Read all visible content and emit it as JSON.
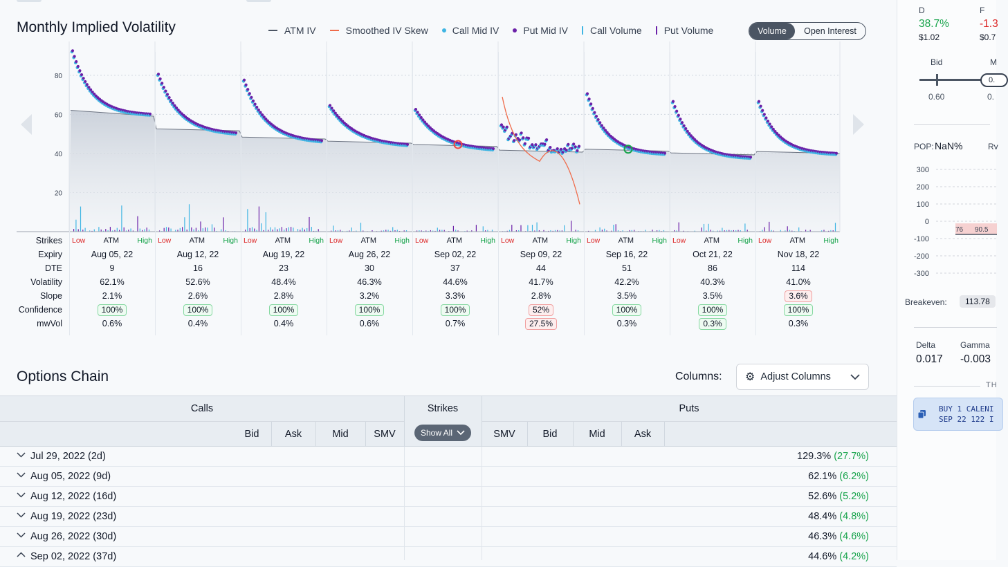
{
  "chart": {
    "title": "Monthly Implied Volatility",
    "legend": [
      {
        "label": "ATM IV",
        "kind": "line",
        "color": "#4b5563"
      },
      {
        "label": "Smoothed IV Skew",
        "kind": "line",
        "color": "#ef6b4a"
      },
      {
        "label": "Call Mid IV",
        "kind": "dot",
        "color": "#3fb5e3"
      },
      {
        "label": "Put Mid IV",
        "kind": "dot",
        "color": "#6b21a8"
      },
      {
        "label": "Call Volume",
        "kind": "bar",
        "color": "#3fb5e3"
      },
      {
        "label": "Put Volume",
        "kind": "bar",
        "color": "#6b21a8"
      }
    ],
    "toggle": {
      "volume": "Volume",
      "open_interest": "Open Interest"
    },
    "y_ticks": [
      "80",
      "60",
      "40",
      "20"
    ],
    "ylim": [
      0,
      92
    ],
    "row_labels": {
      "strikes": "Strikes",
      "expiry": "Expiry",
      "dte": "DTE",
      "volatility": "Volatility",
      "slope": "Slope",
      "confidence": "Confidence",
      "mwvol": "mwVol"
    },
    "strike_markers": {
      "low": "Low",
      "atm": "ATM",
      "high": "High"
    },
    "expirations": [
      {
        "expiry": "Aug 05, 22",
        "dte": "9",
        "volatility": "62.1%",
        "slope": "2.1%",
        "confidence": "100%",
        "mwvol": "0.6%",
        "slope_flag": "",
        "conf_flag": "g",
        "mw_flag": "",
        "atm_iv": 62.1,
        "skew": {
          "start": 92,
          "end": 59,
          "k": 4
        }
      },
      {
        "expiry": "Aug 12, 22",
        "dte": "16",
        "volatility": "52.6%",
        "slope": "2.6%",
        "confidence": "100%",
        "mwvol": "0.4%",
        "slope_flag": "",
        "conf_flag": "g",
        "mw_flag": "",
        "atm_iv": 52.6,
        "skew": {
          "start": 80,
          "end": 49,
          "k": 3.5
        }
      },
      {
        "expiry": "Aug 19, 22",
        "dte": "23",
        "volatility": "48.4%",
        "slope": "2.8%",
        "confidence": "100%",
        "mwvol": "0.4%",
        "slope_flag": "",
        "conf_flag": "g",
        "mw_flag": "",
        "atm_iv": 48.4,
        "skew": {
          "start": 77,
          "end": 45,
          "k": 3.5
        }
      },
      {
        "expiry": "Aug 26, 22",
        "dte": "30",
        "volatility": "46.3%",
        "slope": "3.2%",
        "confidence": "100%",
        "mwvol": "0.6%",
        "slope_flag": "",
        "conf_flag": "g",
        "mw_flag": "",
        "atm_iv": 46.3,
        "skew": {
          "start": 64,
          "end": 43,
          "k": 3
        }
      },
      {
        "expiry": "Sep 02, 22",
        "dte": "37",
        "volatility": "44.6%",
        "slope": "3.3%",
        "confidence": "100%",
        "mwvol": "0.7%",
        "slope_flag": "",
        "conf_flag": "g",
        "mw_flag": "",
        "atm_iv": 44.6,
        "skew": {
          "start": 62,
          "end": 41,
          "k": 3.2
        }
      },
      {
        "expiry": "Sep 09, 22",
        "dte": "44",
        "volatility": "41.7%",
        "slope": "2.8%",
        "confidence": "52%",
        "mwvol": "27.5%",
        "slope_flag": "",
        "conf_flag": "r",
        "mw_flag": "r",
        "atm_iv": 41.7,
        "skew": {
          "start": 52,
          "end": 40,
          "k": 2
        }
      },
      {
        "expiry": "Sep 16, 22",
        "dte": "51",
        "volatility": "42.2%",
        "slope": "3.5%",
        "confidence": "100%",
        "mwvol": "0.3%",
        "slope_flag": "",
        "conf_flag": "g",
        "mw_flag": "",
        "atm_iv": 42.2,
        "skew": {
          "start": 70,
          "end": 39,
          "k": 4
        }
      },
      {
        "expiry": "Oct 21, 22",
        "dte": "86",
        "volatility": "40.3%",
        "slope": "3.5%",
        "confidence": "100%",
        "mwvol": "0.3%",
        "slope_flag": "",
        "conf_flag": "g",
        "mw_flag": "g",
        "atm_iv": 40.3,
        "skew": {
          "start": 66,
          "end": 37,
          "k": 4
        }
      },
      {
        "expiry": "Nov 18, 22",
        "dte": "114",
        "volatility": "41.0%",
        "slope": "3.6%",
        "confidence": "100%",
        "mwvol": "0.3%",
        "slope_flag": "r",
        "conf_flag": "g",
        "mw_flag": "",
        "atm_iv": 41.0,
        "skew": {
          "start": 66,
          "end": 39,
          "k": 4
        }
      }
    ]
  },
  "chain": {
    "title": "Options Chain",
    "columns_label": "Columns:",
    "adjust_label": "Adjust Columns",
    "calls_label": "Calls",
    "strikes_label": "Strikes",
    "puts_label": "Puts",
    "call_cols": [
      "Bid",
      "Ask",
      "Mid",
      "SMV"
    ],
    "put_cols": [
      "SMV",
      "Bid",
      "Mid",
      "Ask"
    ],
    "show_all": "Show All",
    "rows": [
      {
        "date": "Jul 29, 2022 (2d)",
        "iv": "129.3%",
        "chg": "(27.7%)",
        "open": false
      },
      {
        "date": "Aug 05, 2022 (9d)",
        "iv": "62.1%",
        "chg": "(6.2%)",
        "open": false
      },
      {
        "date": "Aug 12, 2022 (16d)",
        "iv": "52.6%",
        "chg": "(5.2%)",
        "open": false
      },
      {
        "date": "Aug 19, 2022 (23d)",
        "iv": "48.4%",
        "chg": "(4.8%)",
        "open": false
      },
      {
        "date": "Aug 26, 2022 (30d)",
        "iv": "46.3%",
        "chg": "(4.6%)",
        "open": false
      },
      {
        "date": "Sep 02, 2022 (37d)",
        "iv": "44.6%",
        "chg": "(4.2%)",
        "open": true
      }
    ]
  },
  "panel": {
    "d_label": "D",
    "d_value": "38.7%",
    "d_price": "$1.02",
    "f_label": "F",
    "f_value": "-1.3",
    "f_price": "$0.7",
    "bid_label": "Bid",
    "bid_value": "0.60",
    "mid_label": "M",
    "mid_value": "0.",
    "pop_label": "POP:",
    "pop_value": "NaN%",
    "rv_label": "Rv",
    "pl_ticks": [
      "300",
      "200",
      "100",
      "0",
      "-100",
      "-200",
      "-300"
    ],
    "pl_x_labels": [
      "76",
      "90.5"
    ],
    "breakeven_label": "Breakeven:",
    "breakeven_value": "113.78",
    "delta_label": "Delta",
    "delta_value": "0.017",
    "gamma_label": "Gamma",
    "gamma_value": "-0.003",
    "th_label": "TH",
    "trade_line1": "BUY 1 CALENI",
    "trade_line2": "SEP 22 122 I"
  }
}
